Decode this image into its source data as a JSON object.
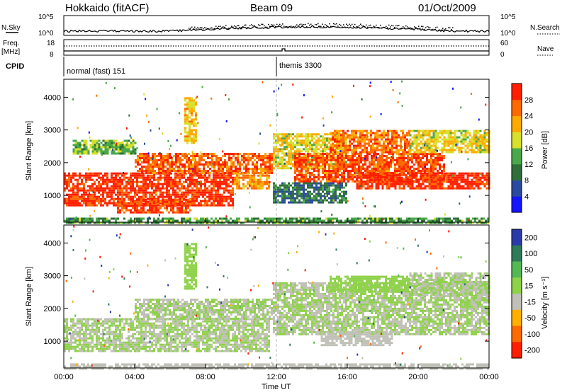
{
  "header": {
    "radar": "Hokkaido (fitACF)",
    "beam": "Beam 09",
    "date": "01/Oct/2009"
  },
  "top_panels": {
    "nsky_label": "N.Sky",
    "nsky_ticks": [
      "10^5",
      "10^0"
    ],
    "nsearch_label": "N.Search",
    "nsearch_ticks": [
      "10^5",
      "10^0"
    ],
    "freq_label_1": "Freq.",
    "freq_label_2": "[MHz]",
    "freq_ticks": [
      "18",
      "8"
    ],
    "nave_label": "Nave",
    "nave_ticks": [
      "60",
      "0"
    ],
    "cpid_label": "CPID",
    "cpid_modes": [
      {
        "label": "normal (fast) 151",
        "start_ut": 0
      },
      {
        "label": "themis 3300",
        "start_ut": 12
      }
    ]
  },
  "chart_data": [
    {
      "type": "heatmap",
      "title": "",
      "ylabel": "Slant Range [km]",
      "xlabel": "Time UT",
      "xlim": [
        0,
        24
      ],
      "ylim": [
        180,
        4550
      ],
      "y_ticks": [
        1000,
        2000,
        3000,
        4000
      ],
      "x_ticks": [
        "00:00",
        "04:00",
        "08:00",
        "12:00",
        "16:00",
        "20:00",
        "00:00"
      ],
      "colorbar": {
        "label": "Power [dB]",
        "ticks": [
          "4",
          "8",
          "12",
          "16",
          "20",
          "24",
          "28"
        ],
        "colors": [
          "#1414ff",
          "#2a4aa0",
          "#2f6f3a",
          "#4aa84a",
          "#d7e02a",
          "#ffaa00",
          "#ff6a00",
          "#ff1f00"
        ],
        "range": [
          0,
          30
        ]
      },
      "regions": [
        {
          "t0": 0.0,
          "t1": 9.6,
          "r0": 700,
          "r1": 1700,
          "value": 28
        },
        {
          "t0": 3.0,
          "t1": 7.2,
          "r0": 500,
          "r1": 900,
          "value": 26
        },
        {
          "t0": 4.0,
          "t1": 11.8,
          "r0": 1700,
          "r1": 2300,
          "value": 25
        },
        {
          "t0": 9.6,
          "t1": 11.6,
          "r0": 1200,
          "r1": 1700,
          "value": 22
        },
        {
          "t0": 0.5,
          "t1": 4.0,
          "r0": 2300,
          "r1": 2700,
          "value": 14
        },
        {
          "t0": 11.8,
          "t1": 16.0,
          "r0": 1800,
          "r1": 2900,
          "value": 18
        },
        {
          "t0": 13.0,
          "t1": 21.5,
          "r0": 1400,
          "r1": 2300,
          "value": 26
        },
        {
          "t0": 16.5,
          "t1": 24.0,
          "r0": 1200,
          "r1": 1700,
          "value": 28
        },
        {
          "t0": 15.0,
          "t1": 19.5,
          "r0": 2300,
          "r1": 3000,
          "value": 24
        },
        {
          "t0": 19.5,
          "t1": 24.0,
          "r0": 2300,
          "r1": 3000,
          "value": 18
        },
        {
          "t0": 11.8,
          "t1": 16.0,
          "r0": 800,
          "r1": 1400,
          "value": 9
        },
        {
          "t0": 6.8,
          "t1": 7.5,
          "r0": 2600,
          "r1": 4000,
          "value": 19
        },
        {
          "t0": 0.0,
          "t1": 24.0,
          "r0": 180,
          "r1": 320,
          "value": 12
        }
      ]
    },
    {
      "type": "heatmap",
      "title": "",
      "ylabel": "Slant Range [km]",
      "xlabel": "Time UT",
      "xlim": [
        0,
        24
      ],
      "ylim": [
        180,
        4550
      ],
      "y_ticks": [
        1000,
        2000,
        3000,
        4000
      ],
      "x_ticks": [
        "00:00",
        "04:00",
        "08:00",
        "12:00",
        "16:00",
        "20:00",
        "00:00"
      ],
      "colorbar": {
        "label": "Velocity [m s⁻¹]",
        "ticks": [
          "200",
          "100",
          "50",
          "15",
          "-15",
          "-50",
          "-100",
          "-200"
        ],
        "colors": [
          "#2a3aa8",
          "#2f7a5a",
          "#55b855",
          "#8fd24a",
          "#c0c0b8",
          "#ffb000",
          "#ff6a00",
          "#ff1f00"
        ],
        "range": [
          -250,
          250
        ]
      },
      "regions": [
        {
          "t0": 0.0,
          "t1": 11.6,
          "r0": 700,
          "r1": 1700,
          "value": 0
        },
        {
          "t0": 4.0,
          "t1": 11.8,
          "r0": 1700,
          "r1": 2300,
          "value": 0
        },
        {
          "t0": 11.8,
          "t1": 24.0,
          "r0": 1200,
          "r1": 2800,
          "value": 0
        },
        {
          "t0": 19.5,
          "t1": 24.0,
          "r0": 2400,
          "r1": 3100,
          "value": 0
        },
        {
          "t0": 15.0,
          "t1": 19.5,
          "r0": 2500,
          "r1": 3000,
          "value": 30
        },
        {
          "t0": 14.5,
          "t1": 18.5,
          "r0": 900,
          "r1": 1300,
          "value": -40
        },
        {
          "t0": 6.8,
          "t1": 7.5,
          "r0": 2600,
          "r1": 4000,
          "value": 30
        },
        {
          "t0": 0.0,
          "t1": 24.0,
          "r0": 180,
          "r1": 320,
          "value": -60
        }
      ]
    }
  ]
}
